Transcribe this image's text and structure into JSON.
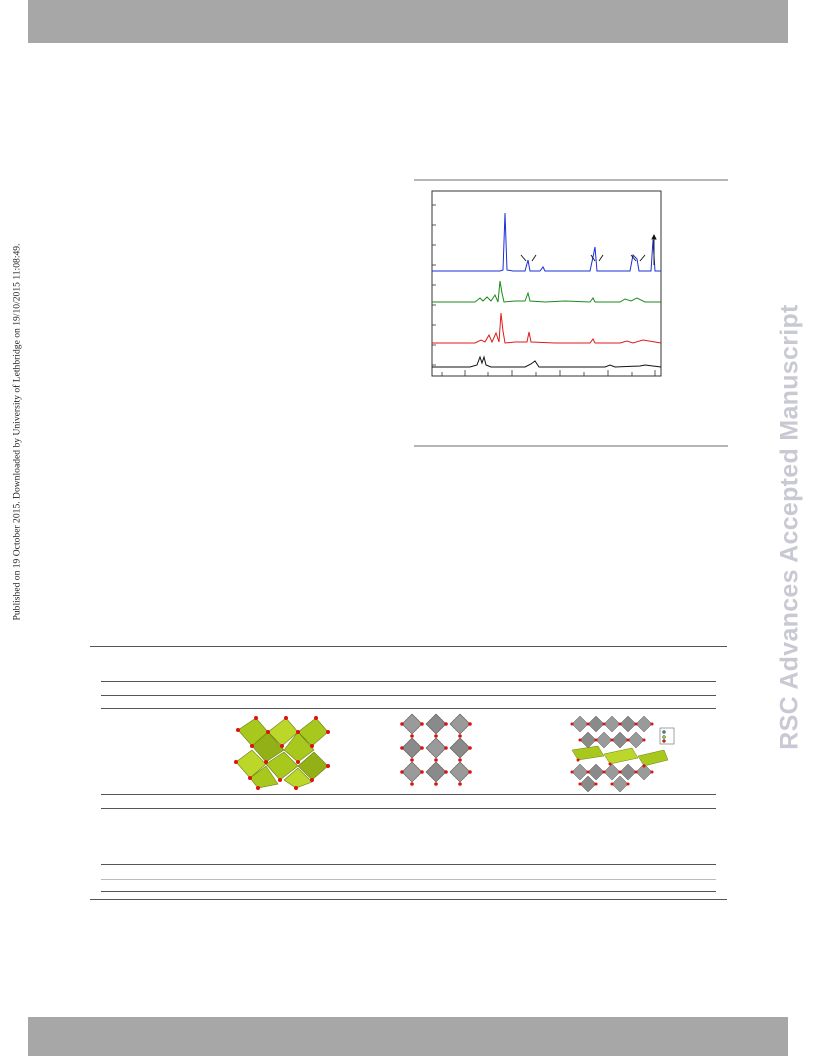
{
  "side_note": "Published on 19 October 2015. Downloaded by University of Lethbridge on 19/10/2015 11:08:49.",
  "watermark": "RSC Advances Accepted Manuscript",
  "header_color": "#a7a7a7",
  "footer_color": "#a7a7a7",
  "figure": {
    "series_colors": [
      "#1a2fd6",
      "#1a8a1a",
      "#e01a1a",
      "#111111"
    ]
  },
  "structure_panels": {
    "colors": {
      "polyhedra_green": "#a8c81e",
      "polyhedra_gray": "#9a9a9a",
      "atoms_red": "#e01010"
    }
  }
}
